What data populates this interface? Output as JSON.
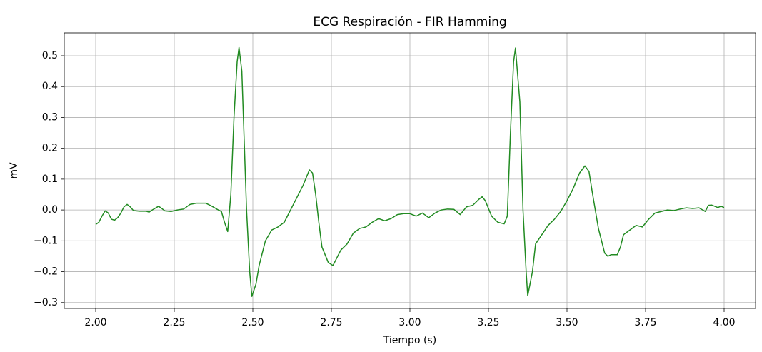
{
  "chart_data": {
    "type": "line",
    "title": "ECG Respiración - FIR Hamming",
    "x_label": "Tiempo (s)",
    "y_label": "mV",
    "xlim": [
      1.9,
      4.1
    ],
    "ylim": [
      -0.319,
      0.574
    ],
    "grid": true,
    "xticks": [
      {
        "value": 2,
        "label": "2.00"
      },
      {
        "value": 2.25,
        "label": "2.25"
      },
      {
        "value": 2.5,
        "label": "2.50"
      },
      {
        "value": 2.75,
        "label": "2.75"
      },
      {
        "value": 3,
        "label": "3.00"
      },
      {
        "value": 3.25,
        "label": "3.25"
      },
      {
        "value": 3.5,
        "label": "3.50"
      },
      {
        "value": 3.75,
        "label": "3.75"
      },
      {
        "value": 4,
        "label": "4.00"
      }
    ],
    "yticks": [
      {
        "value": -0.3,
        "label": "−0.3"
      },
      {
        "value": -0.2,
        "label": "−0.2"
      },
      {
        "value": -0.1,
        "label": "−0.1"
      },
      {
        "value": 0,
        "label": "0.0"
      },
      {
        "value": 0.1,
        "label": "0.1"
      },
      {
        "value": 0.2,
        "label": "0.2"
      },
      {
        "value": 0.3,
        "label": "0.3"
      },
      {
        "value": 0.4,
        "label": "0.4"
      },
      {
        "value": 0.5,
        "label": "0.5"
      }
    ],
    "x": [
      2.0,
      2.01,
      2.02,
      2.03,
      2.04,
      2.05,
      2.06,
      2.07,
      2.08,
      2.09,
      2.1,
      2.11,
      2.12,
      2.14,
      2.16,
      2.17,
      2.18,
      2.2,
      2.21,
      2.22,
      2.24,
      2.26,
      2.28,
      2.3,
      2.32,
      2.35,
      2.37,
      2.39,
      2.4,
      2.41,
      2.42,
      2.43,
      2.44,
      2.45,
      2.456,
      2.465,
      2.47,
      2.48,
      2.49,
      2.497,
      2.51,
      2.52,
      2.54,
      2.56,
      2.58,
      2.6,
      2.62,
      2.64,
      2.66,
      2.68,
      2.69,
      2.7,
      2.71,
      2.72,
      2.74,
      2.755,
      2.77,
      2.78,
      2.8,
      2.82,
      2.84,
      2.86,
      2.88,
      2.9,
      2.92,
      2.94,
      2.96,
      2.98,
      3.0,
      3.02,
      3.04,
      3.06,
      3.08,
      3.1,
      3.12,
      3.14,
      3.16,
      3.18,
      3.2,
      3.22,
      3.23,
      3.24,
      3.26,
      3.28,
      3.3,
      3.31,
      3.32,
      3.33,
      3.336,
      3.35,
      3.36,
      3.37,
      3.375,
      3.39,
      3.4,
      3.42,
      3.44,
      3.46,
      3.48,
      3.5,
      3.52,
      3.54,
      3.557,
      3.57,
      3.58,
      3.6,
      3.62,
      3.63,
      3.64,
      3.66,
      3.67,
      3.68,
      3.7,
      3.72,
      3.74,
      3.76,
      3.78,
      3.8,
      3.82,
      3.84,
      3.86,
      3.88,
      3.9,
      3.92,
      3.94,
      3.95,
      3.96,
      3.98,
      3.99,
      4.0
    ],
    "series": [
      {
        "color": "#228b22",
        "values": [
          -0.047,
          -0.04,
          -0.02,
          -0.003,
          -0.01,
          -0.03,
          -0.033,
          -0.025,
          -0.01,
          0.01,
          0.018,
          0.01,
          -0.002,
          -0.004,
          -0.004,
          -0.007,
          0.0,
          0.012,
          0.005,
          -0.003,
          -0.005,
          0.0,
          0.003,
          0.018,
          0.022,
          0.022,
          0.012,
          0.0,
          -0.005,
          -0.04,
          -0.07,
          0.05,
          0.3,
          0.48,
          0.527,
          0.45,
          0.3,
          0.0,
          -0.2,
          -0.28,
          -0.24,
          -0.18,
          -0.1,
          -0.065,
          -0.055,
          -0.04,
          0.0,
          0.04,
          0.08,
          0.13,
          0.12,
          0.05,
          -0.04,
          -0.12,
          -0.17,
          -0.18,
          -0.15,
          -0.13,
          -0.11,
          -0.075,
          -0.06,
          -0.055,
          -0.04,
          -0.028,
          -0.035,
          -0.028,
          -0.015,
          -0.012,
          -0.012,
          -0.02,
          -0.01,
          -0.025,
          -0.01,
          0.0,
          0.003,
          0.002,
          -0.015,
          0.01,
          0.015,
          0.035,
          0.043,
          0.03,
          -0.02,
          -0.04,
          -0.045,
          -0.02,
          0.25,
          0.48,
          0.525,
          0.35,
          0.0,
          -0.2,
          -0.278,
          -0.2,
          -0.11,
          -0.08,
          -0.05,
          -0.03,
          -0.005,
          0.03,
          0.07,
          0.12,
          0.143,
          0.125,
          0.06,
          -0.06,
          -0.14,
          -0.15,
          -0.145,
          -0.145,
          -0.12,
          -0.08,
          -0.065,
          -0.05,
          -0.055,
          -0.03,
          -0.01,
          -0.005,
          0.0,
          -0.002,
          0.003,
          0.007,
          0.005,
          0.007,
          -0.005,
          0.015,
          0.016,
          0.008,
          0.012,
          0.008
        ]
      }
    ]
  }
}
